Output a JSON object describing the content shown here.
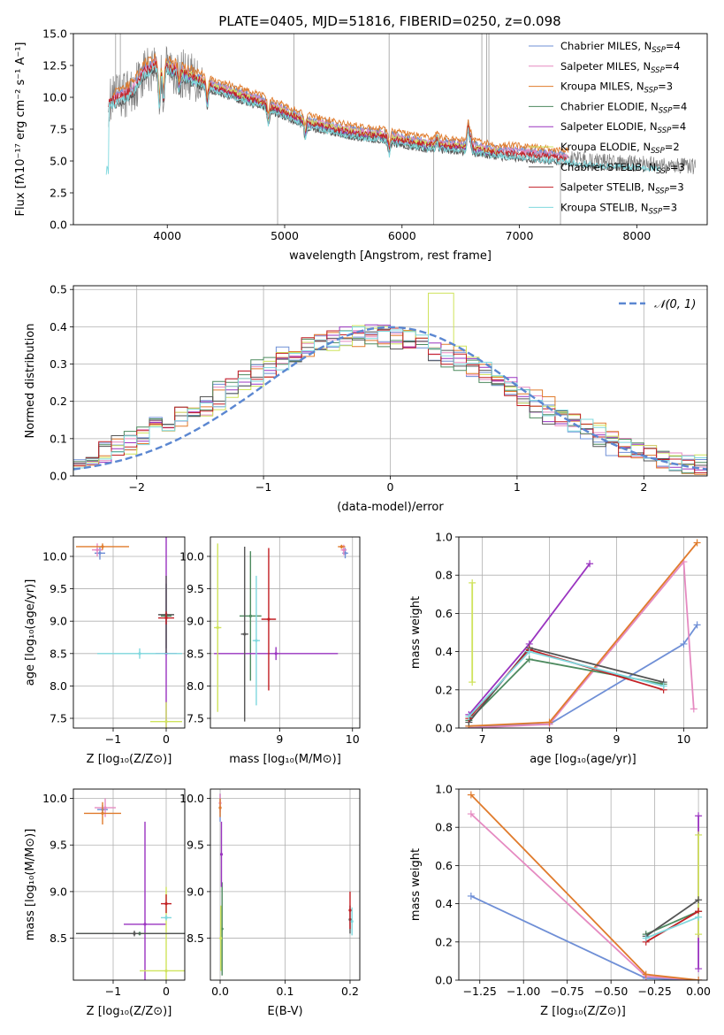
{
  "figure_title": "PLATE=0405, MJD=51816, FIBERID=0250, z=0.098",
  "colors": {
    "Chabrier MILES": "#6f8fd6",
    "Salpeter MILES": "#e58ac1",
    "Kroupa MILES": "#e07b2c",
    "Chabrier ELODIE": "#4d8a5f",
    "Salpeter ELODIE": "#9a34c0",
    "Kroupa ELODIE": "#cfe35c",
    "Chabrier STELIB": "#555555",
    "Salpeter STELIB": "#c21f24",
    "Kroupa STELIB": "#7fd8de",
    "data": "#808080",
    "gauss": "#5b87d1"
  },
  "chart_data": [
    {
      "type": "line",
      "title": "PLATE=0405, MJD=51816, FIBERID=0250, z=0.098",
      "xlabel": "wavelength [Angstrom, rest frame]",
      "ylabel": "Flux [fλ10⁻¹⁷ erg cm⁻² s⁻¹ A⁻¹]",
      "xlim": [
        3200,
        8600
      ],
      "ylim": [
        0,
        15
      ],
      "xticks": [
        "4000",
        "5000",
        "6000",
        "7000",
        "8000"
      ],
      "yticks": [
        "0.0",
        "2.5",
        "5.0",
        "7.5",
        "10.0",
        "12.5",
        "15.0"
      ],
      "legend_position": "top-right",
      "series": [
        {
          "name": "Chabrier MILES, N",
          "sub": "SSP",
          "suffix": "=4"
        },
        {
          "name": "Salpeter MILES, N",
          "sub": "SSP",
          "suffix": "=4"
        },
        {
          "name": "Kroupa MILES, N",
          "sub": "SSP",
          "suffix": "=3"
        },
        {
          "name": "Chabrier ELODIE, N",
          "sub": "SSP",
          "suffix": "=4"
        },
        {
          "name": "Salpeter ELODIE, N",
          "sub": "SSP",
          "suffix": "=4"
        },
        {
          "name": "Kroupa ELODIE, N",
          "sub": "SSP",
          "suffix": "=2"
        },
        {
          "name": "Chabrier STELIB, N",
          "sub": "SSP",
          "suffix": "=3"
        },
        {
          "name": "Salpeter STELIB, N",
          "sub": "SSP",
          "suffix": "=3"
        },
        {
          "name": "Kroupa STELIB, N",
          "sub": "SSP",
          "suffix": "=3"
        }
      ],
      "continuum": {
        "x": [
          3500,
          3700,
          3800,
          3900,
          4000,
          4200,
          4400,
          4600,
          4800,
          5000,
          5200,
          5400,
          5600,
          5800,
          6000,
          6200,
          6400,
          6600,
          6800,
          7000,
          7200,
          7400,
          7600,
          8000,
          8400
        ],
        "y": [
          9.6,
          10.5,
          12.0,
          12.6,
          12.4,
          11.6,
          10.8,
          10.2,
          9.6,
          8.8,
          8.0,
          7.6,
          7.2,
          7.0,
          6.6,
          6.3,
          6.2,
          6.0,
          5.7,
          5.6,
          5.4,
          5.2,
          5.0,
          4.8,
          4.6
        ]
      }
    },
    {
      "type": "line",
      "xlabel": "(data-model)/error",
      "ylabel": "Normed distribution",
      "xlim": [
        -2.5,
        2.5
      ],
      "ylim": [
        0,
        0.51
      ],
      "xticks": [
        "−2",
        "−1",
        "0",
        "1",
        "2"
      ],
      "yticks": [
        "0.0",
        "0.1",
        "0.2",
        "0.3",
        "0.4",
        "0.5"
      ],
      "legend": "𝒩(0, 1)",
      "legend_position": "top-right",
      "gaussian": {
        "mean": 0,
        "sigma": 1
      }
    },
    {
      "type": "scatter",
      "xlabel": "Z [log₁₀(Z/Z⊙)]",
      "ylabel": "age  [log₁₀(age/yr)]",
      "xlim": [
        -1.75,
        0.35
      ],
      "ylim": [
        7.35,
        10.3
      ],
      "xticks": [
        "−1",
        "0"
      ],
      "yticks": [
        "7.5",
        "8.0",
        "8.5",
        "9.0",
        "9.5",
        "10.0"
      ],
      "points": [
        {
          "s": 0,
          "x": -1.25,
          "y": 10.05,
          "xe": 0.1,
          "ye": 0.1
        },
        {
          "s": 1,
          "x": -1.3,
          "y": 10.1,
          "xe": 0.1,
          "ye": 0.1
        },
        {
          "s": 2,
          "x": -1.2,
          "y": 10.15,
          "xe": 0.5,
          "ye": 0.05
        },
        {
          "s": 3,
          "x": 0.0,
          "y": 9.08,
          "xe": 0.1,
          "ye": 0.5
        },
        {
          "s": 4,
          "x": 0.0,
          "y": 8.5,
          "xe": 0.2,
          "ye": 1.8
        },
        {
          "s": 5,
          "x": 0.0,
          "y": 7.45,
          "xe": 0.3,
          "ye": 0.3
        },
        {
          "s": 6,
          "x": 0.0,
          "y": 9.1,
          "xe": 0.15,
          "ye": 0.6
        },
        {
          "s": 7,
          "x": 0.0,
          "y": 9.05,
          "xe": 0.15,
          "ye": 0.1
        },
        {
          "s": 8,
          "x": -0.5,
          "y": 8.5,
          "xe": 0.8,
          "ye": 0.08
        }
      ]
    },
    {
      "type": "scatter",
      "xlabel": "mass [log₁₀(M/M⊙)]",
      "xlim": [
        8.05,
        10.1
      ],
      "ylim": [
        7.35,
        10.3
      ],
      "xticks": [
        "9",
        "10"
      ],
      "yticks": [
        "7.5",
        "8.0",
        "8.5",
        "9.0",
        "9.5",
        "10.0"
      ],
      "points": [
        {
          "s": 0,
          "x": 9.9,
          "y": 10.05,
          "xe": 0.04,
          "ye": 0.08
        },
        {
          "s": 1,
          "x": 9.88,
          "y": 10.1,
          "xe": 0.04,
          "ye": 0.08
        },
        {
          "s": 2,
          "x": 9.85,
          "y": 10.15,
          "xe": 0.05,
          "ye": 0.03
        },
        {
          "s": 3,
          "x": 8.6,
          "y": 9.08,
          "xe": 0.15,
          "ye": 1.0
        },
        {
          "s": 4,
          "x": 8.95,
          "y": 8.5,
          "xe": 0.85,
          "ye": 0.1
        },
        {
          "s": 5,
          "x": 8.15,
          "y": 8.9,
          "xe": 0.05,
          "ye": 1.3
        },
        {
          "s": 6,
          "x": 8.52,
          "y": 8.8,
          "xe": 0.05,
          "ye": 1.35
        },
        {
          "s": 7,
          "x": 8.85,
          "y": 9.03,
          "xe": 0.1,
          "ye": 1.1
        },
        {
          "s": 8,
          "x": 8.68,
          "y": 8.7,
          "xe": 0.05,
          "ye": 1.0
        }
      ]
    },
    {
      "type": "line",
      "xlabel": "age  [log₁₀(age/yr)]",
      "ylabel": "mass weight",
      "xlim": [
        6.65,
        10.35
      ],
      "ylim": [
        0,
        1
      ],
      "xticks": [
        "7",
        "8",
        "9",
        "10"
      ],
      "yticks": [
        "0.0",
        "0.2",
        "0.4",
        "0.6",
        "0.8",
        "1.0"
      ],
      "series": [
        {
          "s": 0,
          "x": [
            6.8,
            8.0,
            10.0,
            10.2
          ],
          "y": [
            0.01,
            0.02,
            0.44,
            0.54
          ]
        },
        {
          "s": 1,
          "x": [
            6.8,
            8.0,
            10.0,
            10.15
          ],
          "y": [
            0.0,
            0.02,
            0.87,
            0.1
          ]
        },
        {
          "s": 2,
          "x": [
            6.8,
            8.0,
            10.2
          ],
          "y": [
            0.01,
            0.03,
            0.97
          ]
        },
        {
          "s": 3,
          "x": [
            6.8,
            7.7,
            9.7
          ],
          "y": [
            0.04,
            0.36,
            0.23
          ]
        },
        {
          "s": 4,
          "x": [
            6.8,
            7.7,
            8.6
          ],
          "y": [
            0.07,
            0.44,
            0.86
          ]
        },
        {
          "s": 5,
          "x": [
            6.85,
            6.85
          ],
          "y": [
            0.24,
            0.76
          ]
        },
        {
          "s": 6,
          "x": [
            6.8,
            7.7,
            9.7
          ],
          "y": [
            0.03,
            0.42,
            0.24
          ]
        },
        {
          "s": 7,
          "x": [
            6.8,
            7.7,
            9.7
          ],
          "y": [
            0.05,
            0.41,
            0.2
          ]
        },
        {
          "s": 8,
          "x": [
            6.8,
            7.7,
            9.7
          ],
          "y": [
            0.06,
            0.4,
            0.22
          ]
        }
      ]
    },
    {
      "type": "scatter",
      "xlabel": "Z [log₁₀(Z/Z⊙)]",
      "ylabel": "mass [log₁₀(M/M⊙)]",
      "xlim": [
        -1.75,
        0.35
      ],
      "ylim": [
        8.05,
        10.1
      ],
      "xticks": [
        "−1",
        "0"
      ],
      "yticks": [
        "8.5",
        "9.0",
        "9.5",
        "10.0"
      ],
      "points": [
        {
          "s": 0,
          "x": -1.2,
          "y": 9.88,
          "xe": 0.1,
          "ye": 0.05
        },
        {
          "s": 1,
          "x": -1.15,
          "y": 9.9,
          "xe": 0.2,
          "ye": 0.1
        },
        {
          "s": 2,
          "x": -1.2,
          "y": 9.84,
          "xe": 0.35,
          "ye": 0.12
        },
        {
          "s": 3,
          "x": -0.5,
          "y": 8.55,
          "xe": 1.2,
          "ye": 0.02
        },
        {
          "s": 4,
          "x": -0.4,
          "y": 8.65,
          "xe": 0.4,
          "ye": 1.1
        },
        {
          "s": 5,
          "x": 0.0,
          "y": 8.15,
          "xe": 0.5,
          "ye": 0.9
        },
        {
          "s": 6,
          "x": -0.6,
          "y": 8.55,
          "xe": 1.1,
          "ye": 0.03
        },
        {
          "s": 7,
          "x": 0.0,
          "y": 8.87,
          "xe": 0.1,
          "ye": 0.1
        },
        {
          "s": 8,
          "x": 0.0,
          "y": 8.72,
          "xe": 0.1,
          "ye": 0.03
        }
      ]
    },
    {
      "type": "scatter",
      "xlabel": "E(B-V)",
      "xlim": [
        -0.015,
        0.215
      ],
      "ylim": [
        8.05,
        10.1
      ],
      "xticks": [
        "0.0",
        "0.1",
        "0.2"
      ],
      "yticks": [
        "8.5",
        "9.0",
        "9.5",
        "10.0"
      ],
      "points": [
        {
          "s": 0,
          "x": 0.0,
          "y": 9.9,
          "ye": 0.15
        },
        {
          "s": 1,
          "x": 0.0,
          "y": 9.95,
          "ye": 0.1
        },
        {
          "s": 2,
          "x": 0.0,
          "y": 9.9,
          "ye": 0.1
        },
        {
          "s": 3,
          "x": 0.003,
          "y": 8.6,
          "ye": 0.5
        },
        {
          "s": 4,
          "x": 0.002,
          "y": 9.4,
          "ye": 0.35
        },
        {
          "s": 5,
          "x": 0.001,
          "y": 8.5,
          "ye": 0.35
        },
        {
          "s": 6,
          "x": 0.2,
          "y": 8.7,
          "ye": 0.15
        },
        {
          "s": 7,
          "x": 0.2,
          "y": 8.8,
          "ye": 0.2
        },
        {
          "s": 8,
          "x": 0.203,
          "y": 8.68,
          "ye": 0.15
        }
      ]
    },
    {
      "type": "line",
      "xlabel": "Z [log₁₀(Z/Z⊙)]",
      "ylabel": "mass weight",
      "xlim": [
        -1.37,
        0.05
      ],
      "ylim": [
        0,
        1
      ],
      "xticks": [
        "−1.25",
        "−1.00",
        "−0.75",
        "−0.50",
        "−0.25",
        "0.00"
      ],
      "yticks": [
        "0.0",
        "0.2",
        "0.4",
        "0.6",
        "0.8",
        "1.0"
      ],
      "series": [
        {
          "s": 0,
          "x": [
            -1.3,
            -0.3,
            0.0
          ],
          "y": [
            0.44,
            0.01,
            0.0
          ]
        },
        {
          "s": 1,
          "x": [
            -1.3,
            -0.3,
            0.0
          ],
          "y": [
            0.87,
            0.02,
            0.0
          ]
        },
        {
          "s": 2,
          "x": [
            -1.3,
            -0.3,
            0.0
          ],
          "y": [
            0.97,
            0.03,
            0.0
          ]
        },
        {
          "s": 3,
          "x": [
            -0.3,
            0.0
          ],
          "y": [
            0.24,
            0.36
          ]
        },
        {
          "s": 4,
          "x": [
            0.0,
            0.0
          ],
          "y": [
            0.06,
            0.86
          ]
        },
        {
          "s": 5,
          "x": [
            0.0,
            0.0
          ],
          "y": [
            0.24,
            0.76
          ]
        },
        {
          "s": 6,
          "x": [
            -0.3,
            0.0
          ],
          "y": [
            0.23,
            0.42
          ]
        },
        {
          "s": 7,
          "x": [
            -0.3,
            0.0
          ],
          "y": [
            0.2,
            0.36
          ]
        },
        {
          "s": 8,
          "x": [
            -0.3,
            0.0
          ],
          "y": [
            0.22,
            0.33
          ]
        }
      ]
    }
  ]
}
